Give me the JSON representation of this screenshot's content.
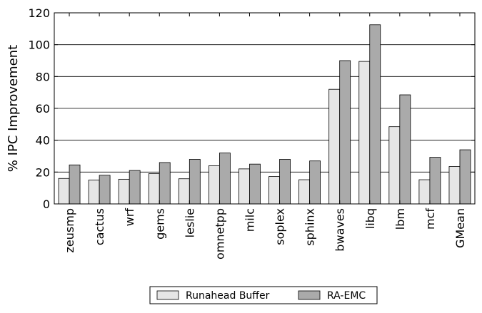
{
  "chart_data": {
    "type": "bar",
    "title": "",
    "xlabel": "",
    "ylabel": "% IPC Improvement",
    "ylim": [
      0,
      120
    ],
    "yticks": [
      0,
      20,
      40,
      60,
      80,
      100,
      120
    ],
    "grid": "horizontal",
    "legend_position": "bottom-center",
    "categories": [
      "zeusmp",
      "cactus",
      "wrf",
      "gems",
      "leslie",
      "omnetpp",
      "milc",
      "soplex",
      "sphinx",
      "bwaves",
      "libq",
      "lbm",
      "mcf",
      "GMean"
    ],
    "series": [
      {
        "name": "Runahead Buffer",
        "color": "#e6e6e6",
        "values": [
          16,
          15,
          15.5,
          19,
          15.8,
          24,
          22,
          17.2,
          15.2,
          72,
          89.5,
          48.5,
          15.2,
          23.5
        ]
      },
      {
        "name": "RA-EMC",
        "color": "#aaaaaa",
        "values": [
          24.5,
          18,
          21,
          26,
          28,
          32,
          25,
          28,
          27,
          90,
          112.5,
          68.5,
          29.3,
          34
        ]
      }
    ]
  }
}
